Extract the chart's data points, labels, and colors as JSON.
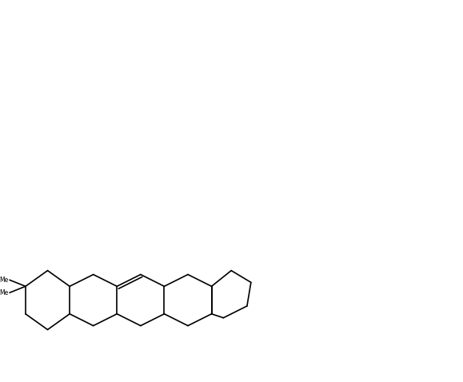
{
  "figsize": [
    5.79,
    4.78
  ],
  "dpi": 100,
  "background": "#ffffff",
  "lw": 1.2,
  "lw_bold": 3.5,
  "fs_label": 6.5,
  "fs_stereo": 5.0
}
